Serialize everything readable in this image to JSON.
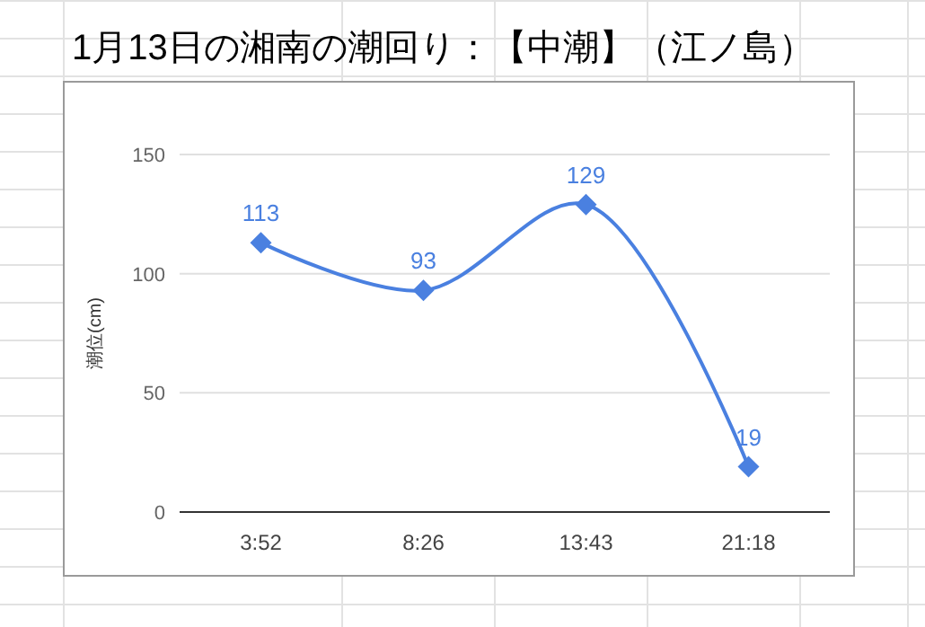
{
  "chart_data": {
    "type": "line",
    "title": "1月13日の湘南の潮回り：【中潮】（江ノ島）",
    "ylabel": "潮位(cm)",
    "categories": [
      "3:52",
      "8:26",
      "13:43",
      "21:18"
    ],
    "series": [
      {
        "color": "#4a80e0",
        "values": [
          113,
          93,
          129,
          19
        ]
      }
    ],
    "ylim": [
      0,
      150
    ],
    "yticks": [
      0,
      50,
      100,
      150
    ],
    "grid": "y",
    "marker": "diamond",
    "line_style": "solid",
    "data_labels": true
  }
}
